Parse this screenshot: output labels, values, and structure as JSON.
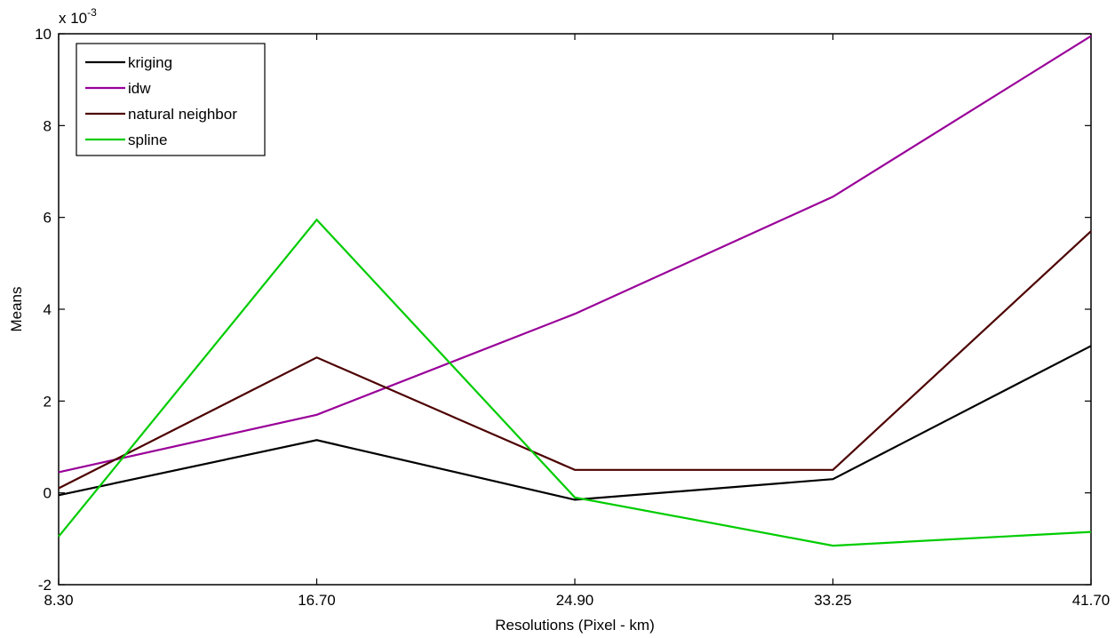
{
  "chart_data": {
    "type": "line",
    "xlabel": "Resolutions (Pixel - km)",
    "ylabel": "Means",
    "y_multiplier_label": "x 10",
    "y_multiplier_exponent": "-3",
    "categories": [
      "8.30",
      "16.70",
      "24.90",
      "33.25",
      "41.70"
    ],
    "y_ticks": [
      "-2",
      "0",
      "2",
      "4",
      "6",
      "8",
      "10"
    ],
    "ylim": [
      -2,
      10
    ],
    "grid": false,
    "legend_position": "top-left",
    "series": [
      {
        "name": "kriging",
        "color": "#000000",
        "values": [
          -0.05,
          1.15,
          -0.15,
          0.3,
          3.2
        ]
      },
      {
        "name": "idw",
        "color": "#990099",
        "values": [
          0.45,
          1.7,
          3.9,
          6.45,
          9.95
        ]
      },
      {
        "name": "natural neighbor",
        "color": "#4d0000",
        "values": [
          0.1,
          2.95,
          0.5,
          0.5,
          5.7
        ]
      },
      {
        "name": "spline",
        "color": "#00cc00",
        "values": [
          -0.95,
          5.95,
          -0.1,
          -1.15,
          -0.85
        ]
      }
    ]
  }
}
